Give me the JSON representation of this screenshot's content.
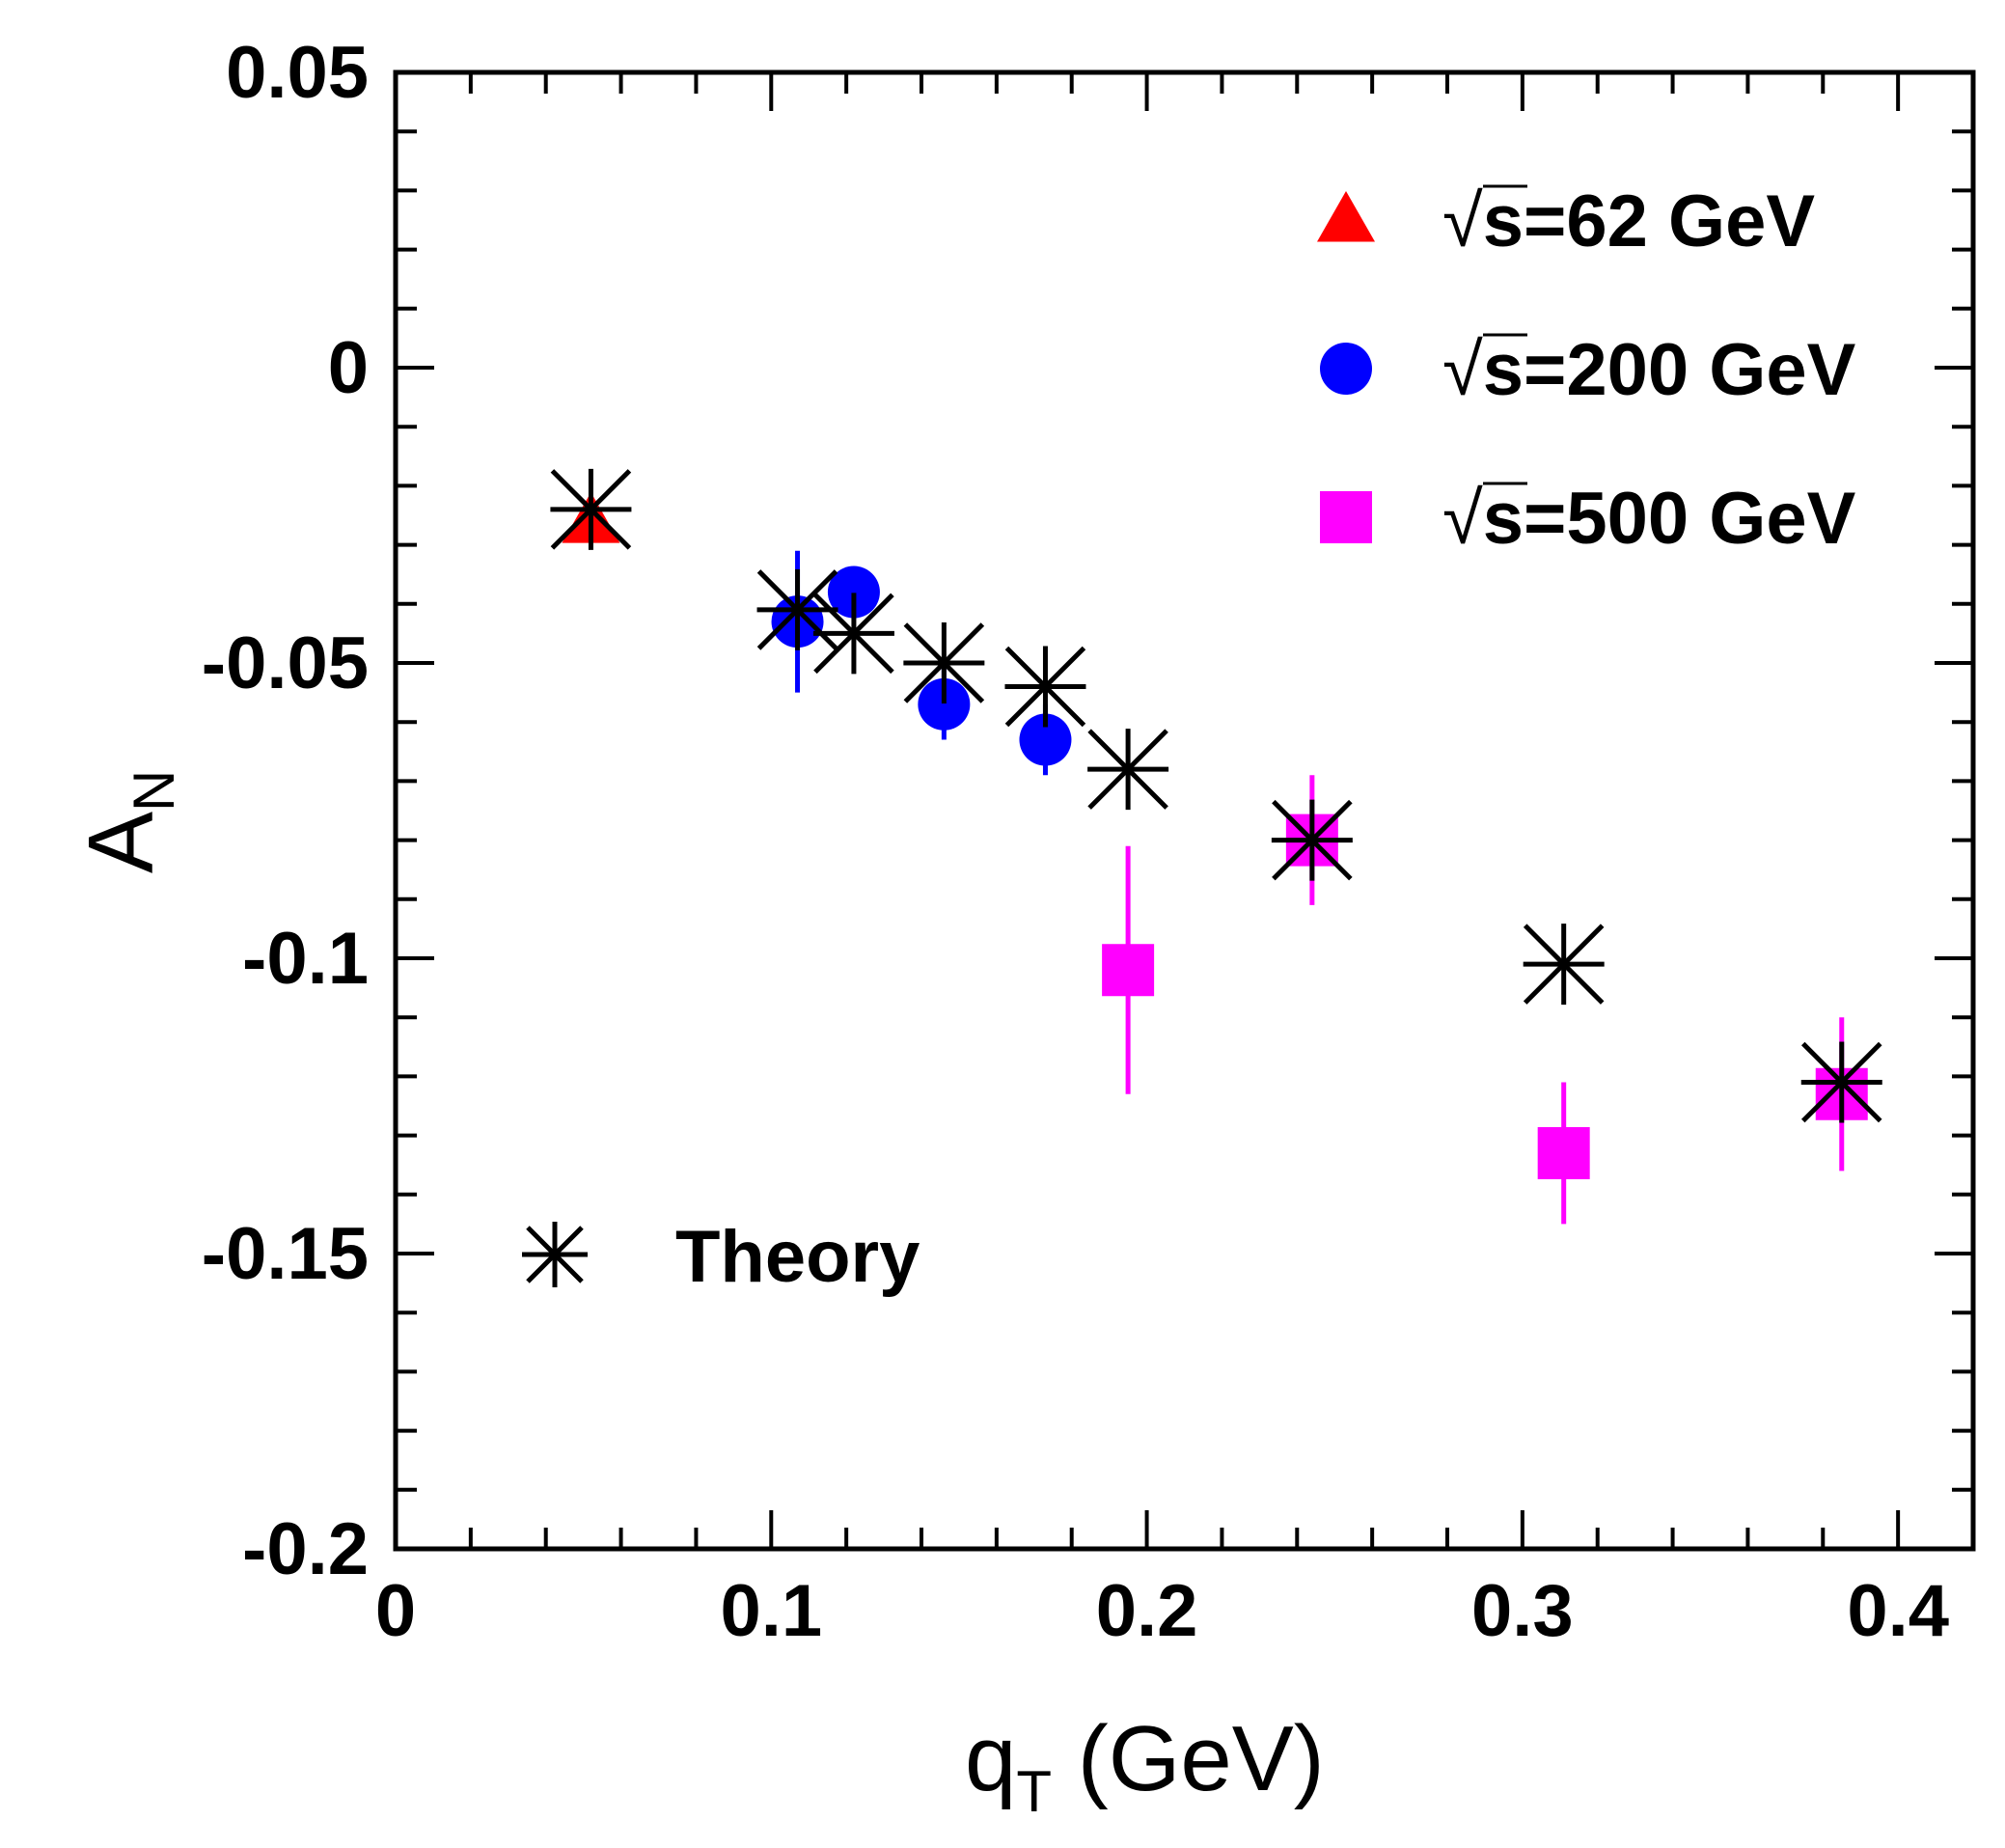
{
  "chart_data": {
    "type": "scatter",
    "title": "",
    "xlabel": {
      "main": "q",
      "sub": "T",
      "unit": " (GeV)"
    },
    "ylabel": {
      "main": "A",
      "sub": "N"
    },
    "xlim": [
      0,
      0.42
    ],
    "ylim": [
      -0.2,
      0.05
    ],
    "x_ticks": [
      {
        "value": 0,
        "label": "0"
      },
      {
        "value": 0.1,
        "label": "0.1"
      },
      {
        "value": 0.2,
        "label": "0.2"
      },
      {
        "value": 0.3,
        "label": "0.3"
      },
      {
        "value": 0.4,
        "label": "0.4"
      }
    ],
    "y_ticks": [
      {
        "value": 0.05,
        "label": "0.05"
      },
      {
        "value": 0,
        "label": "0"
      },
      {
        "value": -0.05,
        "label": "-0.05"
      },
      {
        "value": -0.1,
        "label": "-0.1"
      },
      {
        "value": -0.15,
        "label": "-0.15"
      },
      {
        "value": -0.2,
        "label": "-0.2"
      }
    ],
    "grid": false,
    "series": [
      {
        "name": "√s=62 GeV",
        "legend_root": "√",
        "legend_text": "s=62 GeV",
        "marker": "triangle",
        "color": "#ff0000",
        "points": [
          {
            "x": 0.052,
            "y": -0.026,
            "err": 0.0
          }
        ]
      },
      {
        "name": "√s=200 GeV",
        "legend_root": "√",
        "legend_text": "s=200 GeV",
        "marker": "circle",
        "color": "#0000ff",
        "points": [
          {
            "x": 0.107,
            "y": -0.043,
            "err": 0.012
          },
          {
            "x": 0.122,
            "y": -0.038,
            "err": 0.003
          },
          {
            "x": 0.146,
            "y": -0.057,
            "err": 0.006
          },
          {
            "x": 0.173,
            "y": -0.063,
            "err": 0.006
          }
        ]
      },
      {
        "name": "√s=500 GeV",
        "legend_root": "√",
        "legend_text": "s=500 GeV",
        "marker": "square",
        "color": "#ff00ff",
        "points": [
          {
            "x": 0.195,
            "y": -0.102,
            "err": 0.021
          },
          {
            "x": 0.244,
            "y": -0.08,
            "err": 0.011
          },
          {
            "x": 0.311,
            "y": -0.133,
            "err": 0.012
          },
          {
            "x": 0.385,
            "y": -0.123,
            "err": 0.013
          }
        ]
      },
      {
        "name": "Theory",
        "legend_text": "Theory",
        "marker": "asterisk",
        "color": "#000000",
        "points": [
          {
            "x": 0.052,
            "y": -0.024
          },
          {
            "x": 0.107,
            "y": -0.041
          },
          {
            "x": 0.122,
            "y": -0.045
          },
          {
            "x": 0.146,
            "y": -0.05
          },
          {
            "x": 0.173,
            "y": -0.054
          },
          {
            "x": 0.195,
            "y": -0.068
          },
          {
            "x": 0.244,
            "y": -0.08
          },
          {
            "x": 0.311,
            "y": -0.101
          },
          {
            "x": 0.385,
            "y": -0.121
          }
        ]
      }
    ],
    "legend": {
      "position": "top-right",
      "theory_position": "bottom-left"
    }
  }
}
